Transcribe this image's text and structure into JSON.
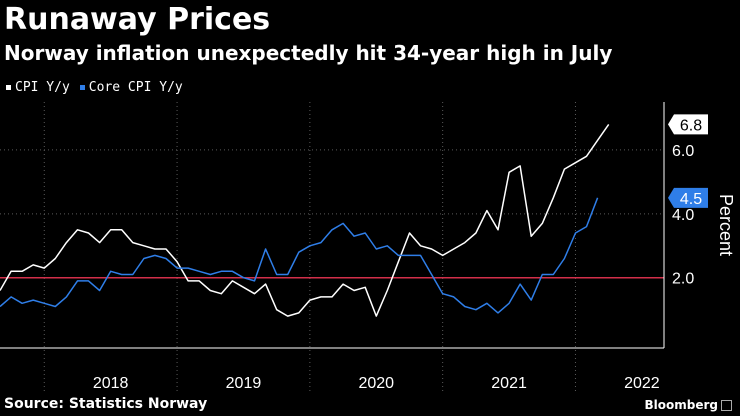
{
  "title": "Runaway Prices",
  "subtitle": "Norway inflation unexpectedly hit 34-year high in July",
  "source": "Source: Statistics Norway",
  "brand": "Bloomberg",
  "colors": {
    "cpi": "#ffffff",
    "core": "#2f7ee8",
    "reference": "#d32f4a",
    "grid": "#5a5a5a",
    "axis": "#ffffff"
  },
  "chart_data": {
    "type": "line",
    "title": "Runaway Prices",
    "subtitle": "Norway inflation unexpectedly hit 34-year high in July",
    "xlabel": "",
    "ylabel": "Percent",
    "x_label_format": "year",
    "x_range": [
      "2017-09",
      "2022-09"
    ],
    "ylim": [
      -0.2,
      7.5
    ],
    "y_ticks": [
      2.0,
      4.0,
      6.0
    ],
    "y_tick_labels": [
      "2.0",
      "4.0",
      "6.0"
    ],
    "x_ticks": [
      "2018",
      "2019",
      "2020",
      "2021",
      "2022"
    ],
    "reference_line": 2.0,
    "grid": true,
    "legend": "top-left",
    "series": [
      {
        "name": "CPI Y/y",
        "color": "#ffffff",
        "end_label": "6.8",
        "points": [
          [
            "2017-09",
            1.6
          ],
          [
            "2017-10",
            2.2
          ],
          [
            "2017-11",
            2.2
          ],
          [
            "2017-12",
            2.4
          ],
          [
            "2018-01",
            2.3
          ],
          [
            "2018-02",
            2.6
          ],
          [
            "2018-03",
            3.1
          ],
          [
            "2018-04",
            3.5
          ],
          [
            "2018-05",
            3.4
          ],
          [
            "2018-06",
            3.1
          ],
          [
            "2018-07",
            3.5
          ],
          [
            "2018-08",
            3.5
          ],
          [
            "2018-09",
            3.1
          ],
          [
            "2018-10",
            3.0
          ],
          [
            "2018-11",
            2.9
          ],
          [
            "2018-12",
            2.9
          ],
          [
            "2019-01",
            2.5
          ],
          [
            "2019-02",
            1.9
          ],
          [
            "2019-03",
            1.9
          ],
          [
            "2019-04",
            1.6
          ],
          [
            "2019-05",
            1.5
          ],
          [
            "2019-06",
            1.9
          ],
          [
            "2019-07",
            1.7
          ],
          [
            "2019-08",
            1.5
          ],
          [
            "2019-09",
            1.8
          ],
          [
            "2019-10",
            1.0
          ],
          [
            "2019-11",
            0.8
          ],
          [
            "2019-12",
            0.9
          ],
          [
            "2020-01",
            1.3
          ],
          [
            "2020-02",
            1.4
          ],
          [
            "2020-03",
            1.4
          ],
          [
            "2020-04",
            1.8
          ],
          [
            "2020-05",
            1.6
          ],
          [
            "2020-06",
            1.7
          ],
          [
            "2020-07",
            0.8
          ],
          [
            "2020-08",
            1.6
          ],
          [
            "2020-09",
            2.5
          ],
          [
            "2020-10",
            3.4
          ],
          [
            "2020-11",
            3.0
          ],
          [
            "2020-12",
            2.9
          ],
          [
            "2021-01",
            2.7
          ],
          [
            "2021-02",
            2.9
          ],
          [
            "2021-03",
            3.1
          ],
          [
            "2021-04",
            3.4
          ],
          [
            "2021-05",
            4.1
          ],
          [
            "2021-06",
            3.5
          ],
          [
            "2021-07",
            5.3
          ],
          [
            "2021-08",
            5.5
          ],
          [
            "2021-09",
            3.3
          ],
          [
            "2021-10",
            3.7
          ],
          [
            "2021-11",
            4.5
          ],
          [
            "2021-12",
            5.4
          ],
          [
            "2022-01",
            5.6
          ],
          [
            "2022-02",
            5.8
          ],
          [
            "2022-03",
            6.3
          ],
          [
            "2022-04",
            6.8
          ]
        ]
      },
      {
        "name": "Core CPI Y/y",
        "color": "#2f7ee8",
        "end_label": "4.5",
        "points": [
          [
            "2017-09",
            1.1
          ],
          [
            "2017-10",
            1.4
          ],
          [
            "2017-11",
            1.2
          ],
          [
            "2017-12",
            1.3
          ],
          [
            "2018-01",
            1.2
          ],
          [
            "2018-02",
            1.1
          ],
          [
            "2018-03",
            1.4
          ],
          [
            "2018-04",
            1.9
          ],
          [
            "2018-05",
            1.9
          ],
          [
            "2018-06",
            1.6
          ],
          [
            "2018-07",
            2.2
          ],
          [
            "2018-08",
            2.1
          ],
          [
            "2018-09",
            2.1
          ],
          [
            "2018-10",
            2.6
          ],
          [
            "2018-11",
            2.7
          ],
          [
            "2018-12",
            2.6
          ],
          [
            "2019-01",
            2.3
          ],
          [
            "2019-02",
            2.3
          ],
          [
            "2019-03",
            2.2
          ],
          [
            "2019-04",
            2.1
          ],
          [
            "2019-05",
            2.2
          ],
          [
            "2019-06",
            2.2
          ],
          [
            "2019-07",
            2.0
          ],
          [
            "2019-08",
            1.9
          ],
          [
            "2019-09",
            2.9
          ],
          [
            "2019-10",
            2.1
          ],
          [
            "2019-11",
            2.1
          ],
          [
            "2019-12",
            2.8
          ],
          [
            "2020-01",
            3.0
          ],
          [
            "2020-02",
            3.1
          ],
          [
            "2020-03",
            3.5
          ],
          [
            "2020-04",
            3.7
          ],
          [
            "2020-05",
            3.3
          ],
          [
            "2020-06",
            3.4
          ],
          [
            "2020-07",
            2.9
          ],
          [
            "2020-08",
            3.0
          ],
          [
            "2020-09",
            2.7
          ],
          [
            "2020-10",
            2.7
          ],
          [
            "2020-11",
            2.7
          ],
          [
            "2020-12",
            2.1
          ],
          [
            "2021-01",
            1.5
          ],
          [
            "2021-02",
            1.4
          ],
          [
            "2021-03",
            1.1
          ],
          [
            "2021-04",
            1.0
          ],
          [
            "2021-05",
            1.2
          ],
          [
            "2021-06",
            0.9
          ],
          [
            "2021-07",
            1.2
          ],
          [
            "2021-08",
            1.8
          ],
          [
            "2021-09",
            1.3
          ],
          [
            "2021-10",
            2.1
          ],
          [
            "2021-11",
            2.1
          ],
          [
            "2021-12",
            2.6
          ],
          [
            "2022-01",
            3.4
          ],
          [
            "2022-02",
            3.6
          ],
          [
            "2022-03",
            4.5
          ]
        ]
      }
    ]
  }
}
